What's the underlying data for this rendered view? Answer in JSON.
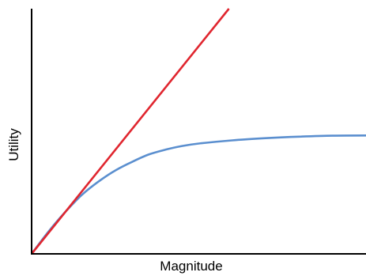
{
  "chart_data": {
    "type": "line",
    "title": "",
    "xlabel": "Magnitude",
    "ylabel": "Utility",
    "xlim": [
      0,
      100
    ],
    "ylim": [
      0,
      100
    ],
    "grid": false,
    "legend": "none",
    "ticks": false,
    "series": [
      {
        "color": "#e0262f",
        "x": [
          0,
          59
        ],
        "y": [
          0,
          100
        ]
      },
      {
        "color": "#5b8fcf",
        "x": [
          0,
          5,
          10,
          15,
          20,
          25,
          30,
          35,
          40,
          45,
          50,
          60,
          70,
          80,
          90,
          100
        ],
        "y": [
          0,
          9,
          17,
          24,
          29.5,
          34,
          37.5,
          40.5,
          42.5,
          44,
          45,
          46.3,
          47.2,
          47.8,
          48.2,
          48.3
        ]
      }
    ]
  }
}
